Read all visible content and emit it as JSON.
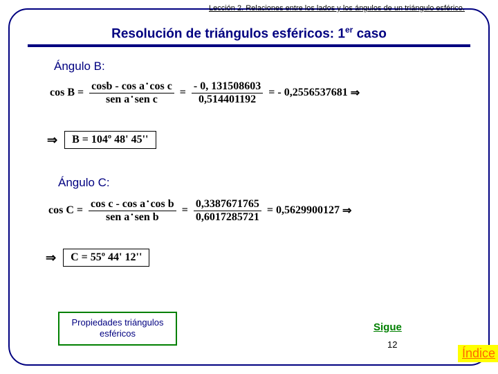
{
  "header": {
    "lesson": "Lección 2. Relaciones entre los lados y los ángulos de un triángulo esférico."
  },
  "title": {
    "text_pre": "Resolución de triángulos esféricos: 1",
    "sup": "er",
    "text_post": " caso"
  },
  "angleB": {
    "label": "Ángulo B:",
    "lhs": "cos B",
    "frac1_num_a": "cosb",
    "frac1_num_op": " - ",
    "frac1_num_b": "cos a",
    "frac1_num_c": "cos c",
    "frac1_den_a": "sen a",
    "frac1_den_b": "sen c",
    "frac2_num": "- 0, 131508603",
    "frac2_den": "0,514401192",
    "result": "- 0,2556537681",
    "therefore": "⇒",
    "box": "B = 104º 48' 45''"
  },
  "angleC": {
    "label": "Ángulo C:",
    "lhs": "cos C",
    "frac1_num_a": "cos c",
    "frac1_num_op": " - ",
    "frac1_num_b": "cos a",
    "frac1_num_c": "cos b",
    "frac1_den_a": "sen a",
    "frac1_den_b": "sen b",
    "frac2_num": "0,3387671765",
    "frac2_den": "0,6017285721",
    "result": "0,5629900127",
    "therefore": "⇒",
    "box": "C = 55º 44' 12''"
  },
  "nav": {
    "prop_btn": "Propiedades triángulos esféricos",
    "sigue": "Sigue",
    "page": "12",
    "indice": "Índice"
  },
  "style": {
    "brand_color": "#000080",
    "accent_green": "#008000",
    "accent_orange": "#ff6600",
    "highlight": "#ffff00"
  }
}
